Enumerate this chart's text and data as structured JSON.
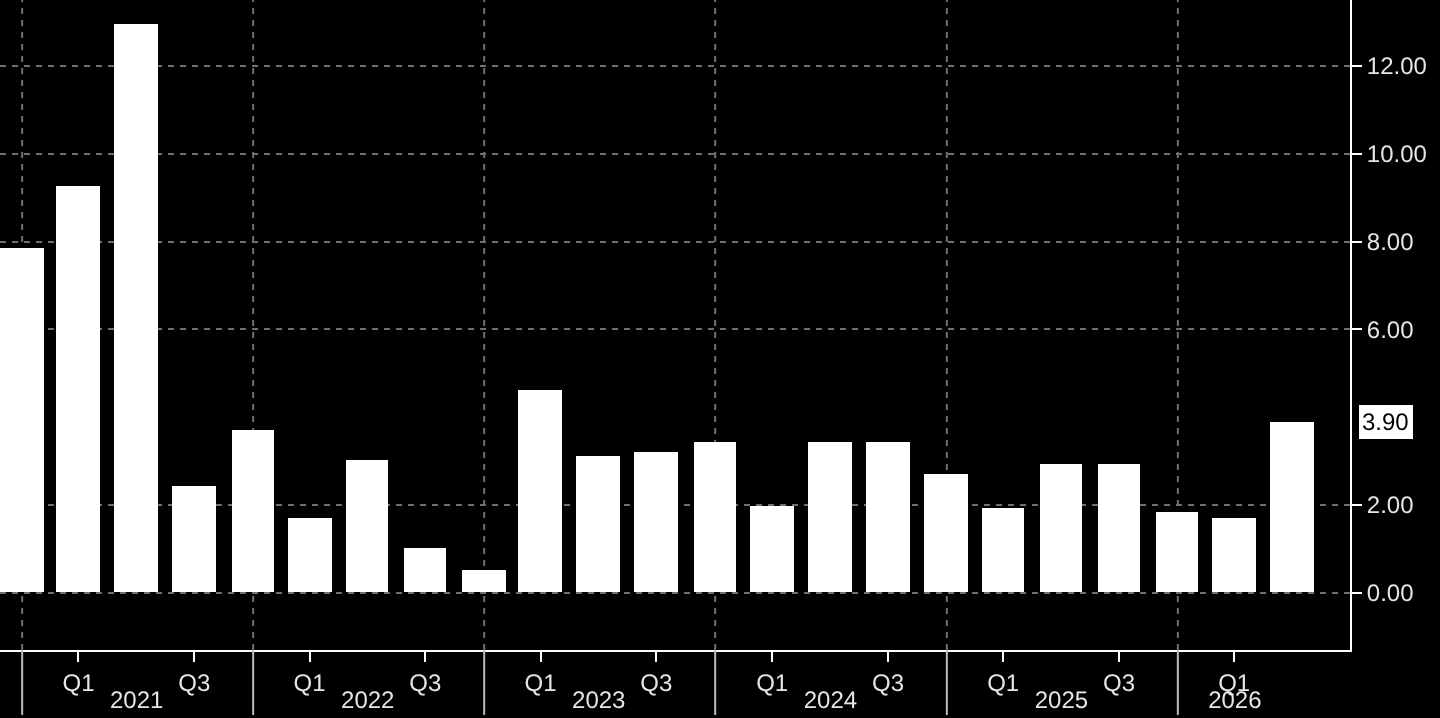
{
  "chart_data": {
    "type": "bar",
    "x": [
      "2020-12-31",
      "2021-03-31",
      "2021-06-30",
      "2021-09-30",
      "2021-12-31",
      "2022-03-31",
      "2022-06-30",
      "2022-09-30",
      "2022-12-31",
      "2023-03-31",
      "2023-06-30",
      "2023-09-30",
      "2023-12-31",
      "2024-03-31",
      "2024-06-30",
      "2024-09-30",
      "2024-12-31",
      "2025-03-31",
      "2025-06-30",
      "2025-09-30",
      "2025-12-31",
      "2026-03-31",
      "2026-06-30"
    ],
    "series": [
      {
        "color": "#ffffff",
        "values": [
          7.85,
          9.27,
          12.97,
          2.42,
          3.7,
          1.69,
          3.01,
          1.0,
          0.5,
          4.61,
          3.1,
          3.19,
          3.42,
          2.0,
          3.42,
          3.42,
          2.69,
          1.92,
          2.92,
          2.92,
          1.83,
          1.69,
          3.9
        ]
      }
    ],
    "xlim": [
      "2020-11-27",
      "2026-09-30"
    ],
    "xticks": [
      {
        "value": "2021-03-31",
        "label": "Q1"
      },
      {
        "value": "2021-09-30",
        "label": "Q3"
      },
      {
        "value": "2022-03-31",
        "label": "Q1"
      },
      {
        "value": "2022-09-30",
        "label": "Q3"
      },
      {
        "value": "2023-03-31",
        "label": "Q1"
      },
      {
        "value": "2023-09-30",
        "label": "Q3"
      },
      {
        "value": "2024-03-31",
        "label": "Q1"
      },
      {
        "value": "2024-09-30",
        "label": "Q3"
      },
      {
        "value": "2025-03-31",
        "label": "Q1"
      },
      {
        "value": "2025-09-30",
        "label": "Q3"
      },
      {
        "value": "2026-03-31",
        "label": "Q1"
      }
    ],
    "x2lim": [
      "2020-11-27",
      "2026-09-30"
    ],
    "x2ticks": [
      {
        "value": "2021-07-01",
        "label": "2021"
      },
      {
        "value": "2022-07-01",
        "label": "2022"
      },
      {
        "value": "2023-07-01",
        "label": "2023"
      },
      {
        "value": "2024-07-01",
        "label": "2024"
      },
      {
        "value": "2025-07-01",
        "label": "2025"
      },
      {
        "value": "2026-04-01",
        "label": "2026"
      }
    ],
    "ylim": [
      -1.3,
      13.5
    ],
    "yticks": [
      {
        "value": 0,
        "label": "0.00"
      },
      {
        "value": 2,
        "label": "2.00"
      },
      {
        "value": 6,
        "label": "6.00"
      },
      {
        "value": 8,
        "label": "8.00"
      },
      {
        "value": 10,
        "label": "10.00"
      },
      {
        "value": 12,
        "label": "12.00"
      }
    ],
    "annotations": [
      {
        "text": "3.90",
        "x": "2026-06-30",
        "y": 3.9
      }
    ],
    "grid": true
  }
}
